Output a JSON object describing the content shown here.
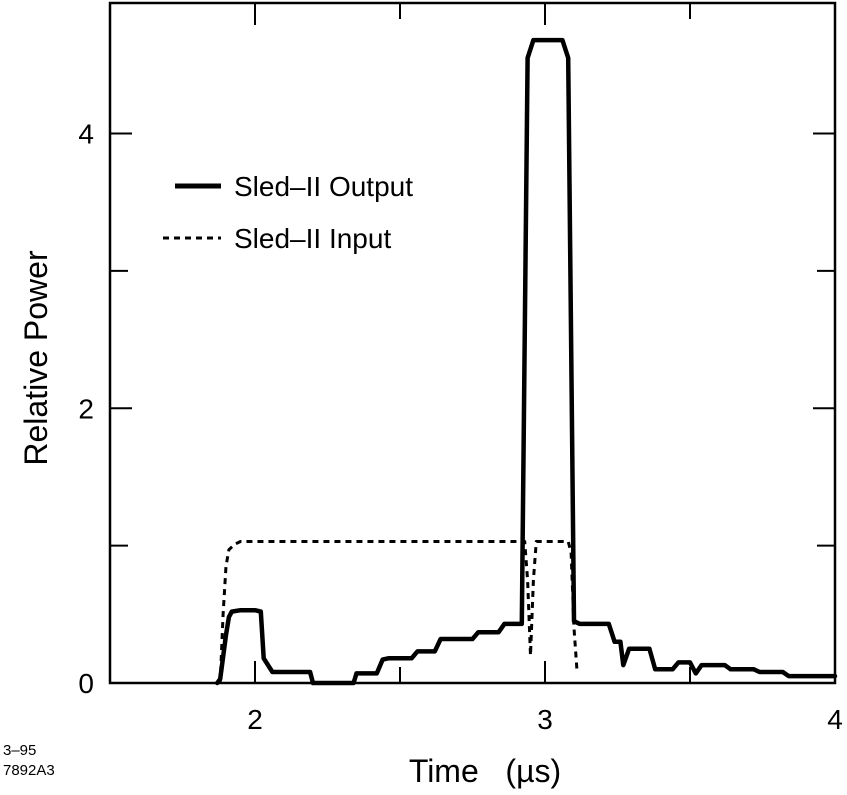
{
  "chart_data": {
    "type": "line",
    "xlabel": "Time   (µs)",
    "ylabel": "Relative Power",
    "xlim": [
      1.5,
      4
    ],
    "ylim": [
      0,
      4.95
    ],
    "x_ticks": [
      2,
      3,
      4
    ],
    "x_minor_ticks": [
      2.5,
      3.5
    ],
    "y_ticks": [
      0,
      2,
      4
    ],
    "y_minor_ticks": [
      1,
      3
    ],
    "grid": false,
    "legend_position": "upper-left",
    "series": [
      {
        "name": "Sled–II Output",
        "style": "solid",
        "color": "#000000",
        "x": [
          1.87,
          1.88,
          1.9,
          1.91,
          1.92,
          1.95,
          2.0,
          2.02,
          2.03,
          2.06,
          2.19,
          2.2,
          2.34,
          2.35,
          2.42,
          2.44,
          2.46,
          2.54,
          2.56,
          2.62,
          2.64,
          2.75,
          2.77,
          2.84,
          2.86,
          2.92,
          2.93,
          2.94,
          2.96,
          3.06,
          3.08,
          3.09,
          3.1,
          3.12,
          3.22,
          3.24,
          3.26,
          3.27,
          3.29,
          3.36,
          3.38,
          3.44,
          3.46,
          3.5,
          3.52,
          3.54,
          3.56,
          3.62,
          3.64,
          3.72,
          3.74,
          3.82,
          3.84,
          4.0
        ],
        "y": [
          0,
          0.03,
          0.35,
          0.48,
          0.52,
          0.53,
          0.53,
          0.52,
          0.18,
          0.08,
          0.08,
          0,
          0,
          0.07,
          0.07,
          0.17,
          0.18,
          0.18,
          0.23,
          0.23,
          0.32,
          0.32,
          0.37,
          0.37,
          0.43,
          0.43,
          2.5,
          4.55,
          4.68,
          4.68,
          4.55,
          2.5,
          0.45,
          0.43,
          0.43,
          0.3,
          0.3,
          0.13,
          0.25,
          0.25,
          0.1,
          0.1,
          0.15,
          0.15,
          0.07,
          0.13,
          0.13,
          0.13,
          0.1,
          0.1,
          0.08,
          0.08,
          0.05,
          0.05
        ]
      },
      {
        "name": "Sled–II Input",
        "style": "dotted",
        "color": "#000000",
        "x": [
          1.88,
          1.89,
          1.9,
          1.91,
          1.93,
          1.95,
          2.6,
          2.93,
          2.94,
          2.95,
          2.96,
          2.97,
          3.08,
          3.09,
          3.1,
          3.11
        ],
        "y": [
          0,
          0.5,
          0.85,
          0.97,
          1.01,
          1.03,
          1.03,
          1.03,
          0.75,
          0.2,
          0.75,
          1.03,
          1.03,
          0.95,
          0.4,
          0.1
        ]
      }
    ]
  },
  "legend": {
    "output_label": "Sled–II Output",
    "input_label": "Sled–II Input"
  },
  "figure_id": {
    "line1": "3–95",
    "line2": "7892A3"
  }
}
